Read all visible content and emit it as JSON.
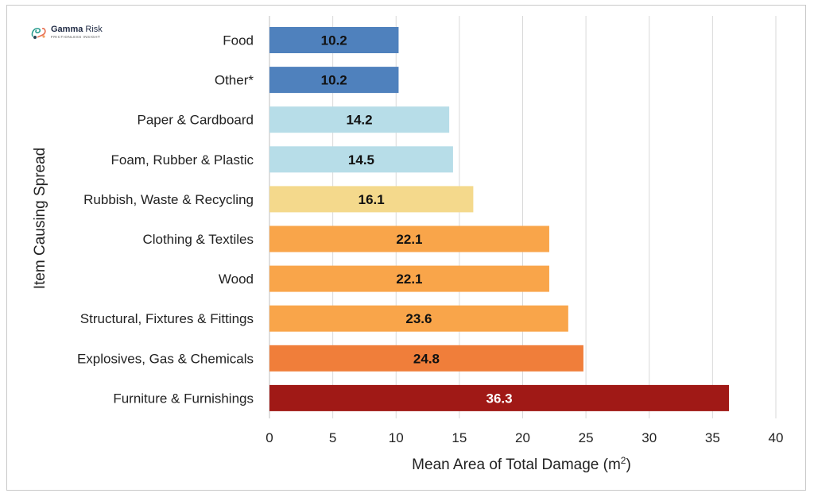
{
  "logo": {
    "name_primary": "Gamma",
    "name_secondary": "Risk",
    "tagline": "FRICTIONLESS INSIGHT"
  },
  "chart_data": {
    "type": "bar",
    "orientation": "horizontal",
    "title": "",
    "xlabel": "Mean Area of Total Damage (m",
    "xlabel_superscript": "2",
    "xlabel_suffix": ")",
    "ylabel": "Item Causing Spread",
    "xlim": [
      0,
      40
    ],
    "xticks": [
      0,
      5,
      10,
      15,
      20,
      25,
      30,
      35,
      40
    ],
    "grid": true,
    "categories": [
      "Food",
      "Other*",
      "Paper & Cardboard",
      "Foam, Rubber & Plastic",
      "Rubbish, Waste & Recycling",
      "Clothing & Textiles",
      "Wood",
      "Structural, Fixtures & Fittings",
      "Explosives, Gas & Chemicals",
      "Furniture & Furnishings"
    ],
    "values": [
      10.2,
      10.2,
      14.2,
      14.5,
      16.1,
      22.1,
      22.1,
      23.6,
      24.8,
      36.3
    ],
    "labels": [
      "10.2",
      "10.2",
      "14.2",
      "14.5",
      "16.1",
      "22.1",
      "22.1",
      "23.6",
      "24.8",
      "36.3"
    ],
    "colors": [
      "#4f81bd",
      "#4f81bd",
      "#b7dde8",
      "#b7dde8",
      "#f4d98c",
      "#f9a54a",
      "#f9a54a",
      "#f9a54a",
      "#f07e3a",
      "#a01916"
    ],
    "label_colors": [
      "#111111",
      "#111111",
      "#111111",
      "#111111",
      "#111111",
      "#111111",
      "#111111",
      "#111111",
      "#111111",
      "#ffffff"
    ]
  }
}
